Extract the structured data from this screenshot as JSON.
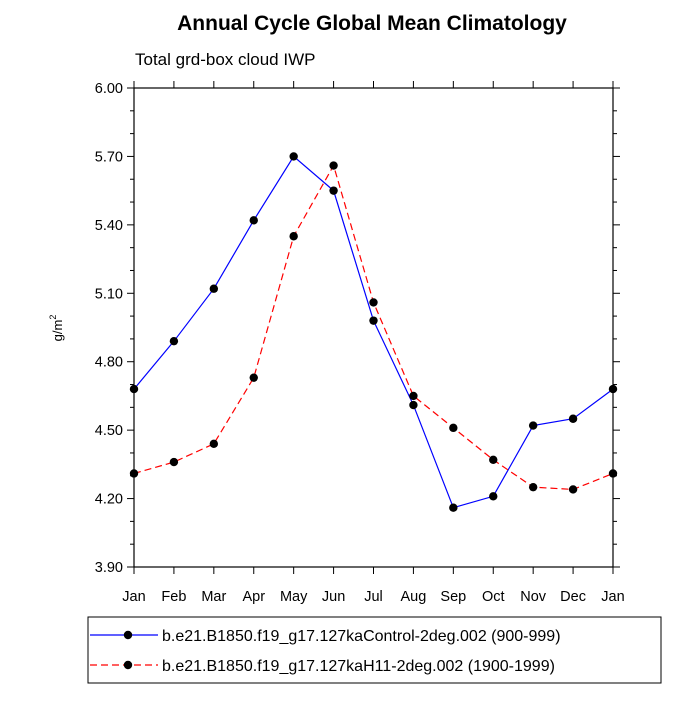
{
  "chart_data": {
    "type": "line",
    "title": "Annual Cycle Global Mean Climatology",
    "subtitle": "Total grd-box cloud IWP",
    "ylabel_base": "g/m",
    "ylabel_exp": "2",
    "xlabel": "",
    "categories": [
      "Jan",
      "Feb",
      "Mar",
      "Apr",
      "May",
      "Jun",
      "Jul",
      "Aug",
      "Sep",
      "Oct",
      "Nov",
      "Dec",
      "Jan"
    ],
    "ylim": [
      3.9,
      6.0
    ],
    "yticks": [
      "3.90",
      "4.20",
      "4.50",
      "4.80",
      "5.10",
      "5.40",
      "5.70",
      "6.00"
    ],
    "grid": false,
    "legend_position": "bottom",
    "series": [
      {
        "name": "b.e21.B1850.f19_g17.127kaControl-2deg.002 (900-999)",
        "color": "#0000ff",
        "dash": "solid",
        "values": [
          4.68,
          4.89,
          5.12,
          5.42,
          5.7,
          5.55,
          4.98,
          4.61,
          4.16,
          4.21,
          4.52,
          4.55,
          4.68
        ]
      },
      {
        "name": "b.e21.B1850.f19_g17.127kaH11-2deg.002 (1900-1999)",
        "color": "#ff0000",
        "dash": "dashed",
        "values": [
          4.31,
          4.36,
          4.44,
          4.73,
          5.35,
          5.66,
          5.06,
          4.65,
          4.51,
          4.37,
          4.25,
          4.24,
          4.31
        ]
      }
    ]
  }
}
